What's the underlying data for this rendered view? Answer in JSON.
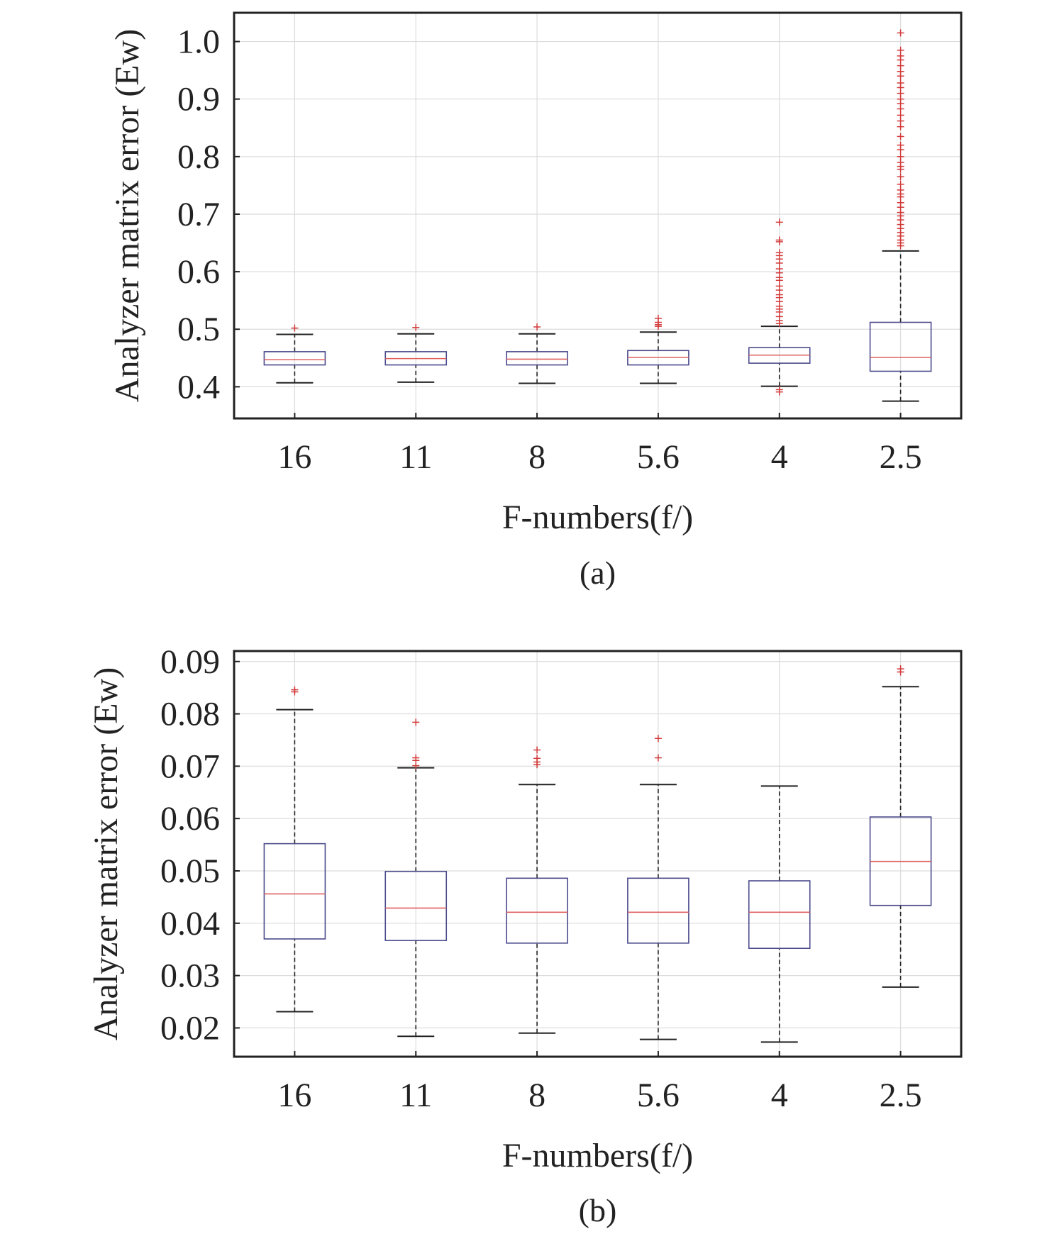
{
  "chart_data": [
    {
      "type": "box",
      "panel_label": "(a)",
      "title": "",
      "xlabel": "F-numbers(f/)",
      "ylabel": "Analyzer matrix error (Ew)",
      "categories": [
        "16",
        "11",
        "8",
        "5.6",
        "4",
        "2.5"
      ],
      "ylim": [
        0.345,
        1.05
      ],
      "yticks": [
        0.4,
        0.5,
        0.6,
        0.7,
        0.8,
        0.9,
        1.0
      ],
      "ytick_labels": [
        "0.4",
        "0.5",
        "0.6",
        "0.7",
        "0.8",
        "0.9",
        "1.0"
      ],
      "grid": true,
      "boxes": [
        {
          "category": "16",
          "whisker_low": 0.407,
          "q1": 0.438,
          "median": 0.447,
          "q3": 0.461,
          "whisker_high": 0.491,
          "outliers": [
            0.502
          ]
        },
        {
          "category": "11",
          "whisker_low": 0.408,
          "q1": 0.438,
          "median": 0.449,
          "q3": 0.461,
          "whisker_high": 0.492,
          "outliers": [
            0.503
          ]
        },
        {
          "category": "8",
          "whisker_low": 0.406,
          "q1": 0.438,
          "median": 0.448,
          "q3": 0.461,
          "whisker_high": 0.492,
          "outliers": [
            0.504
          ]
        },
        {
          "category": "5.6",
          "whisker_low": 0.406,
          "q1": 0.438,
          "median": 0.451,
          "q3": 0.463,
          "whisker_high": 0.495,
          "outliers": [
            0.505,
            0.508,
            0.512,
            0.519
          ]
        },
        {
          "category": "4",
          "whisker_low": 0.401,
          "q1": 0.441,
          "median": 0.455,
          "q3": 0.468,
          "whisker_high": 0.505,
          "outliers": [
            0.391,
            0.395,
            0.51,
            0.515,
            0.522,
            0.53,
            0.535,
            0.54,
            0.548,
            0.555,
            0.56,
            0.568,
            0.575,
            0.585,
            0.59,
            0.598,
            0.605,
            0.615,
            0.622,
            0.628,
            0.633,
            0.652,
            0.655,
            0.686
          ]
        },
        {
          "category": "2.5",
          "whisker_low": 0.375,
          "q1": 0.427,
          "median": 0.451,
          "q3": 0.512,
          "whisker_high": 0.636,
          "outliers": [
            0.645,
            0.65,
            0.655,
            0.662,
            0.668,
            0.675,
            0.682,
            0.69,
            0.697,
            0.703,
            0.712,
            0.72,
            0.73,
            0.735,
            0.742,
            0.752,
            0.765,
            0.778,
            0.783,
            0.79,
            0.8,
            0.812,
            0.82,
            0.835,
            0.852,
            0.862,
            0.872,
            0.883,
            0.892,
            0.9,
            0.91,
            0.92,
            0.928,
            0.94,
            0.948,
            0.958,
            0.968,
            0.975,
            0.985,
            1.015
          ]
        }
      ]
    },
    {
      "type": "box",
      "panel_label": "(b)",
      "title": "",
      "xlabel": "F-numbers(f/)",
      "ylabel": "Analyzer matrix error (Ew)",
      "categories": [
        "16",
        "11",
        "8",
        "5.6",
        "4",
        "2.5"
      ],
      "ylim": [
        0.0145,
        0.092
      ],
      "yticks": [
        0.02,
        0.03,
        0.04,
        0.05,
        0.06,
        0.07,
        0.08,
        0.09
      ],
      "ytick_labels": [
        "0.02",
        "0.03",
        "0.04",
        "0.05",
        "0.06",
        "0.07",
        "0.08",
        "0.09"
      ],
      "grid": true,
      "boxes": [
        {
          "category": "16",
          "whisker_low": 0.0231,
          "q1": 0.037,
          "median": 0.0456,
          "q3": 0.0552,
          "whisker_high": 0.0808,
          "outliers": [
            0.0842,
            0.0846
          ]
        },
        {
          "category": "11",
          "whisker_low": 0.0184,
          "q1": 0.0367,
          "median": 0.0429,
          "q3": 0.0499,
          "whisker_high": 0.0697,
          "outliers": [
            0.0701,
            0.0711,
            0.0716,
            0.0784
          ]
        },
        {
          "category": "8",
          "whisker_low": 0.019,
          "q1": 0.0362,
          "median": 0.0421,
          "q3": 0.0486,
          "whisker_high": 0.0665,
          "outliers": [
            0.0703,
            0.0708,
            0.0715,
            0.0731
          ]
        },
        {
          "category": "5.6",
          "whisker_low": 0.0178,
          "q1": 0.0362,
          "median": 0.0421,
          "q3": 0.0486,
          "whisker_high": 0.0665,
          "outliers": [
            0.0716,
            0.0753
          ]
        },
        {
          "category": "4",
          "whisker_low": 0.0173,
          "q1": 0.0352,
          "median": 0.0421,
          "q3": 0.0481,
          "whisker_high": 0.0662,
          "outliers": []
        },
        {
          "category": "2.5",
          "whisker_low": 0.0278,
          "q1": 0.0434,
          "median": 0.0518,
          "q3": 0.0603,
          "whisker_high": 0.0852,
          "outliers": [
            0.088,
            0.0886
          ]
        }
      ]
    }
  ]
}
